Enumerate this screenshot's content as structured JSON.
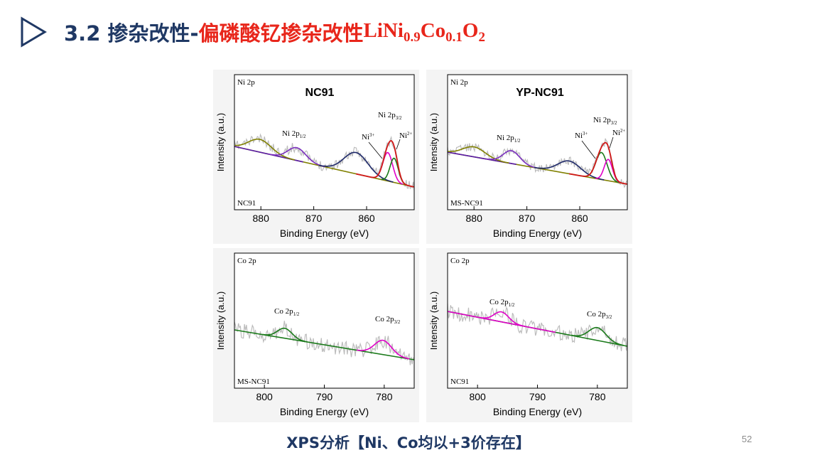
{
  "slide": {
    "title_part1": "3.2 掺杂改性-",
    "title_part2": "偏磷酸钇掺杂改性",
    "title_formula": {
      "base": "LiNi",
      "s1": "0.9",
      "co": "Co",
      "s2": "0.1",
      "o": "O",
      "s3": "2"
    },
    "caption": "XPS分析【Ni、Co均以+3价存在】",
    "page_number": "52",
    "colors": {
      "title_blue": "#1f3864",
      "title_red": "#e8261b"
    }
  },
  "chart_data": [
    {
      "type": "line",
      "element": "Ni 2p",
      "title": "NC91",
      "sample_label": "NC91",
      "xlabel": "Binding Energy (eV)",
      "ylabel": "Intensity (a.u.)",
      "xlim": [
        885,
        851
      ],
      "xticks": [
        880,
        870,
        860
      ],
      "x_reversed": true,
      "annotations": [
        "Ni 2p1/2",
        "Ni 2p3/2",
        "Ni3+",
        "Ni2+"
      ],
      "series": [
        {
          "name": "Ni 2p1/2",
          "color": "#7b2fbf",
          "center": 873.2
        },
        {
          "name": "Ni3+",
          "color": "#e000c8",
          "center": 856.0
        },
        {
          "name": "Ni2+",
          "color": "#1a7a1a",
          "center": 854.8
        },
        {
          "name": "Ni 2p3/2",
          "color": "#d01818",
          "center": 855.4
        }
      ]
    },
    {
      "type": "line",
      "element": "Ni 2p",
      "title": "YP-NC91",
      "sample_label": "MS-NC91",
      "xlabel": "Binding Energy (eV)",
      "ylabel": "Intensity (a.u.)",
      "xlim": [
        885,
        851
      ],
      "xticks": [
        880,
        870,
        860
      ],
      "x_reversed": true,
      "annotations": [
        "Ni 2p1/2",
        "Ni 2p3/2",
        "Ni3+",
        "Ni2+"
      ],
      "series": [
        {
          "name": "Ni 2p1/2",
          "color": "#7b2fbf",
          "center": 872.9
        },
        {
          "name": "Ni3+",
          "color": "#1a7a1a",
          "center": 855.9
        },
        {
          "name": "Ni2+",
          "color": "#e000c8",
          "center": 854.6
        },
        {
          "name": "Ni 2p3/2",
          "color": "#d01818",
          "center": 855.2
        }
      ]
    },
    {
      "type": "line",
      "element": "Co 2p",
      "title": "",
      "sample_label": "MS-NC91",
      "xlabel": "Binding Energy (eV)",
      "ylabel": "Intensity (a.u.)",
      "xlim": [
        805,
        775
      ],
      "xticks": [
        800,
        790,
        780
      ],
      "x_reversed": true,
      "annotations": [
        "Co 2p1/2",
        "Co 2p3/2"
      ],
      "series": [
        {
          "name": "Co 2p1/2",
          "color": "#1a7a1a",
          "center": 796.6
        },
        {
          "name": "Co 2p3/2",
          "color": "#e000c8",
          "center": 780.2
        }
      ]
    },
    {
      "type": "line",
      "element": "Co 2p",
      "title": "",
      "sample_label": "NC91",
      "xlabel": "Binding Energy (eV)",
      "ylabel": "Intensity (a.u.)",
      "xlim": [
        805,
        775
      ],
      "xticks": [
        800,
        790,
        780
      ],
      "x_reversed": true,
      "annotations": [
        "Co 2p1/2",
        "Co 2p3/2"
      ],
      "series": [
        {
          "name": "Co 2p1/2",
          "color": "#e000c8",
          "center": 796.0
        },
        {
          "name": "Co 2p3/2",
          "color": "#1a7a1a",
          "center": 780.0
        }
      ]
    }
  ]
}
